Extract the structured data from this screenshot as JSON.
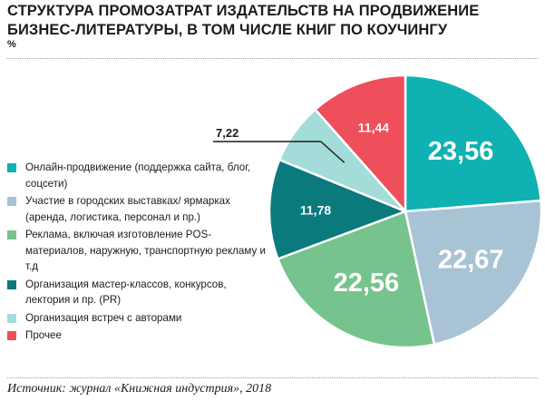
{
  "title": "Структура промозатрат издательств на продвижение бизнес-литературы, в том числе книг по коучингу",
  "unit": "%",
  "source": "Источник: журнал «Книжная индустрия», 2018",
  "chart_data": {
    "type": "pie",
    "title": "Структура промозатрат издательств на продвижение бизнес-литературы, в том числе книг по коучингу",
    "unit": "%",
    "start_angle_deg": 0,
    "direction": "clockwise",
    "slices": [
      {
        "label": "Онлайн-продвижение (поддержка сайта, блог, соцсети)",
        "value": 23.56,
        "value_label": "23,56",
        "color": "#0fb1b2",
        "label_size": "large"
      },
      {
        "label": "Участие в городских выставках / ярмарках (аренда, логистика, персонал и пр.)",
        "value": 22.67,
        "value_label": "22,67",
        "color": "#a8c3d4",
        "label_size": "large"
      },
      {
        "label": "Реклама, включая изготовление POS-материалов, наружную, транспортную рекламу и т.д",
        "value": 22.56,
        "value_label": "22,56",
        "color": "#77c38d",
        "label_size": "large"
      },
      {
        "label": "Организация мастер-классов, конкурсов, лектория и пр. (PR)",
        "value": 11.78,
        "value_label": "11,78",
        "color": "#0a7a7c",
        "label_size": "small"
      },
      {
        "label": "Организация встреч с авторами",
        "value": 7.22,
        "value_label": "7,22",
        "color": "#a3dcd8",
        "label_size": "callout"
      },
      {
        "label": "Прочее",
        "value": 11.44,
        "value_label": "11,44",
        "color": "#ee4f5b",
        "label_size": "small"
      }
    ]
  },
  "legend": [
    {
      "text": "Онлайн-продвижение (поддержка сайта, блог, соцсети)",
      "color": "#0fb1b2"
    },
    {
      "text": "Участие в городских выставках/ ярмарках (аренда, логистика, персонал и пр.)",
      "color": "#a8c3d4"
    },
    {
      "text": "Реклама, включая изготовление POS-материалов, наружную, транспортную рекламу и т.д",
      "color": "#77c38d"
    },
    {
      "text": "Организация мастер-классов, конкурсов, лектория и пр. (PR)",
      "color": "#0a7a7c"
    },
    {
      "text": "Организация встреч с авторами",
      "color": "#a3dcd8"
    },
    {
      "text": "Прочее",
      "color": "#ee4f5b"
    }
  ]
}
